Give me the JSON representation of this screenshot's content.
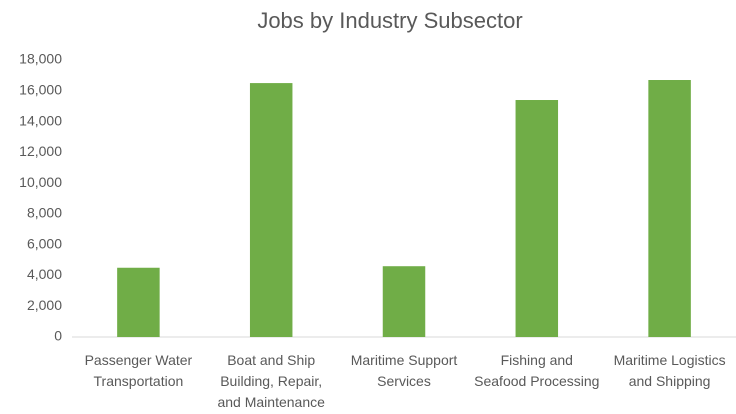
{
  "chart_data": {
    "type": "bar",
    "title": "Jobs by Industry Subsector",
    "categories": [
      "Passenger Water Transportation",
      "Boat and Ship Building, Repair, and Maintenance",
      "Maritime Support Services",
      "Fishing and Seafood Processing",
      "Maritime Logistics and Shipping"
    ],
    "values": [
      4500,
      16500,
      4600,
      15400,
      16700
    ],
    "color": "#70ad47",
    "ylim": [
      0,
      18000
    ],
    "yticks": [
      0,
      {
        "value": 2000,
        "label": "2,000"
      },
      {
        "value": 4000,
        "label": "4,000"
      },
      {
        "value": 6000,
        "label": "6,000"
      },
      {
        "value": 8000,
        "label": "8,000"
      },
      {
        "value": 10000,
        "label": "10,000"
      },
      {
        "value": 12000,
        "label": "12,000"
      },
      {
        "value": 14000,
        "label": "14,000"
      },
      {
        "value": 16000,
        "label": "16,000"
      },
      {
        "value": 18000,
        "label": "18,000"
      }
    ],
    "grid": false
  }
}
